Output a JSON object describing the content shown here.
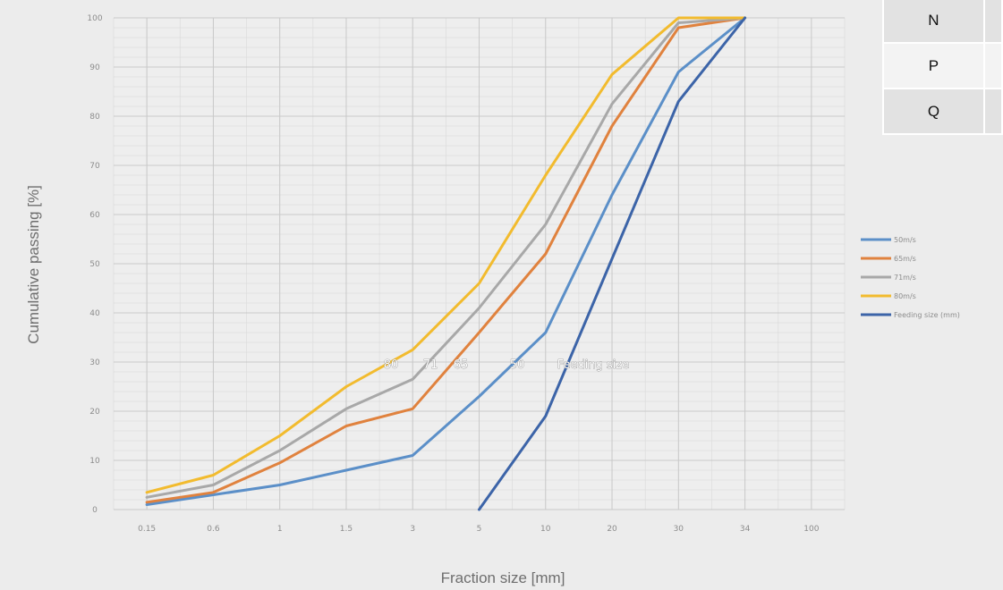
{
  "chart_data": {
    "type": "line",
    "xlabel": "Fraction size  [mm]",
    "ylabel": "Cumulative passing  [%]",
    "x_ticks": [
      "0.15",
      "0.6",
      "1",
      "1.5",
      "3",
      "5",
      "10",
      "20",
      "30",
      "34",
      "100"
    ],
    "y_ticks": [
      "0",
      "10",
      "20",
      "30",
      "40",
      "50",
      "60",
      "70",
      "80",
      "90",
      "100"
    ],
    "ylim": [
      0,
      100
    ],
    "grid": true,
    "legend_position": "right",
    "series": [
      {
        "name": "50m/s",
        "color": "#5b8fc8",
        "points": [
          [
            "0.15",
            1
          ],
          [
            "0.6",
            3
          ],
          [
            "1",
            5
          ],
          [
            "1.5",
            8
          ],
          [
            "3",
            11
          ],
          [
            "5",
            23
          ],
          [
            "10",
            36
          ],
          [
            "20",
            64
          ],
          [
            "30",
            89
          ],
          [
            "34",
            100
          ]
        ]
      },
      {
        "name": "65m/s",
        "color": "#e0823e",
        "points": [
          [
            "0.15",
            1.5
          ],
          [
            "0.6",
            3.5
          ],
          [
            "1",
            9.5
          ],
          [
            "1.5",
            17
          ],
          [
            "3",
            20.5
          ],
          [
            "5",
            36
          ],
          [
            "10",
            52
          ],
          [
            "20",
            78
          ],
          [
            "30",
            98
          ],
          [
            "34",
            100
          ]
        ]
      },
      {
        "name": "71m/s",
        "color": "#a8a8a8",
        "points": [
          [
            "0.15",
            2.5
          ],
          [
            "0.6",
            5
          ],
          [
            "1",
            12
          ],
          [
            "1.5",
            20.5
          ],
          [
            "3",
            26.5
          ],
          [
            "5",
            41
          ],
          [
            "10",
            58
          ],
          [
            "20",
            82.5
          ],
          [
            "30",
            99
          ],
          [
            "34",
            100
          ]
        ]
      },
      {
        "name": "80m/s",
        "color": "#f2bb2e",
        "points": [
          [
            "0.15",
            3.5
          ],
          [
            "0.6",
            7
          ],
          [
            "1",
            15
          ],
          [
            "1.5",
            25
          ],
          [
            "3",
            32.5
          ],
          [
            "5",
            46
          ],
          [
            "10",
            68
          ],
          [
            "20",
            88.5
          ],
          [
            "30",
            100
          ],
          [
            "34",
            100
          ]
        ]
      },
      {
        "name": "Feeding size (mm)",
        "color": "#3c64a8",
        "points": [
          [
            "5",
            0
          ],
          [
            "10",
            19
          ],
          [
            "20",
            51
          ],
          [
            "30",
            83
          ],
          [
            "34",
            100
          ]
        ]
      }
    ],
    "annotations": [
      "80",
      "71",
      "65",
      "50",
      "Feeding size"
    ],
    "key_table": [
      "N",
      "P",
      "Q"
    ]
  }
}
